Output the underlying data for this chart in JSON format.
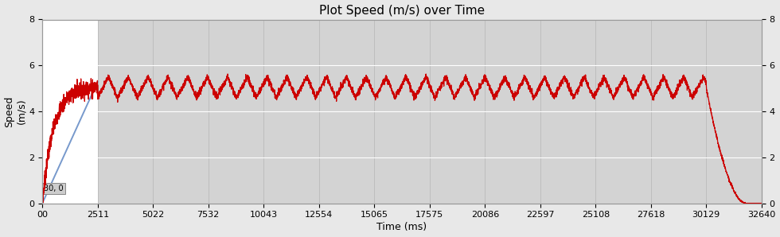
{
  "title": "Plot Speed (m/s) over Time",
  "xlabel": "Time (ms)",
  "ylabel": "Speed\n(m/s)",
  "ylim": [
    0,
    8
  ],
  "xlim": [
    0,
    32640
  ],
  "xtick_values": [
    0,
    2511,
    5022,
    7532,
    10043,
    12554,
    15065,
    17575,
    20086,
    22597,
    25108,
    27618,
    30129,
    32640
  ],
  "xtick_labels": [
    "00",
    "2511",
    "5022",
    "7532",
    "10043",
    "12554",
    "15065",
    "17575",
    "20086",
    "22597",
    "25108",
    "27618",
    "30129",
    "32640"
  ],
  "ytick_values": [
    0,
    2,
    4,
    6,
    8
  ],
  "background_color": "#d3d3d3",
  "fig_bg": "#e8e8e8",
  "white_region_end": 2511,
  "accel_end_time": 2511,
  "decel_start": 30129,
  "decel_end": 31900,
  "total_end": 32640,
  "line_color_red": "#cc0000",
  "line_color_blue": "#7799cc",
  "annotation_text": "30, 0",
  "cruise_speed_mean": 5.05,
  "cruise_speed_min": 4.5,
  "cruise_speed_max": 5.7,
  "cruise_osc_period": 900,
  "grid_color": "#bbbbbb",
  "title_fontsize": 11,
  "tick_fontsize": 8,
  "label_fontsize": 9
}
